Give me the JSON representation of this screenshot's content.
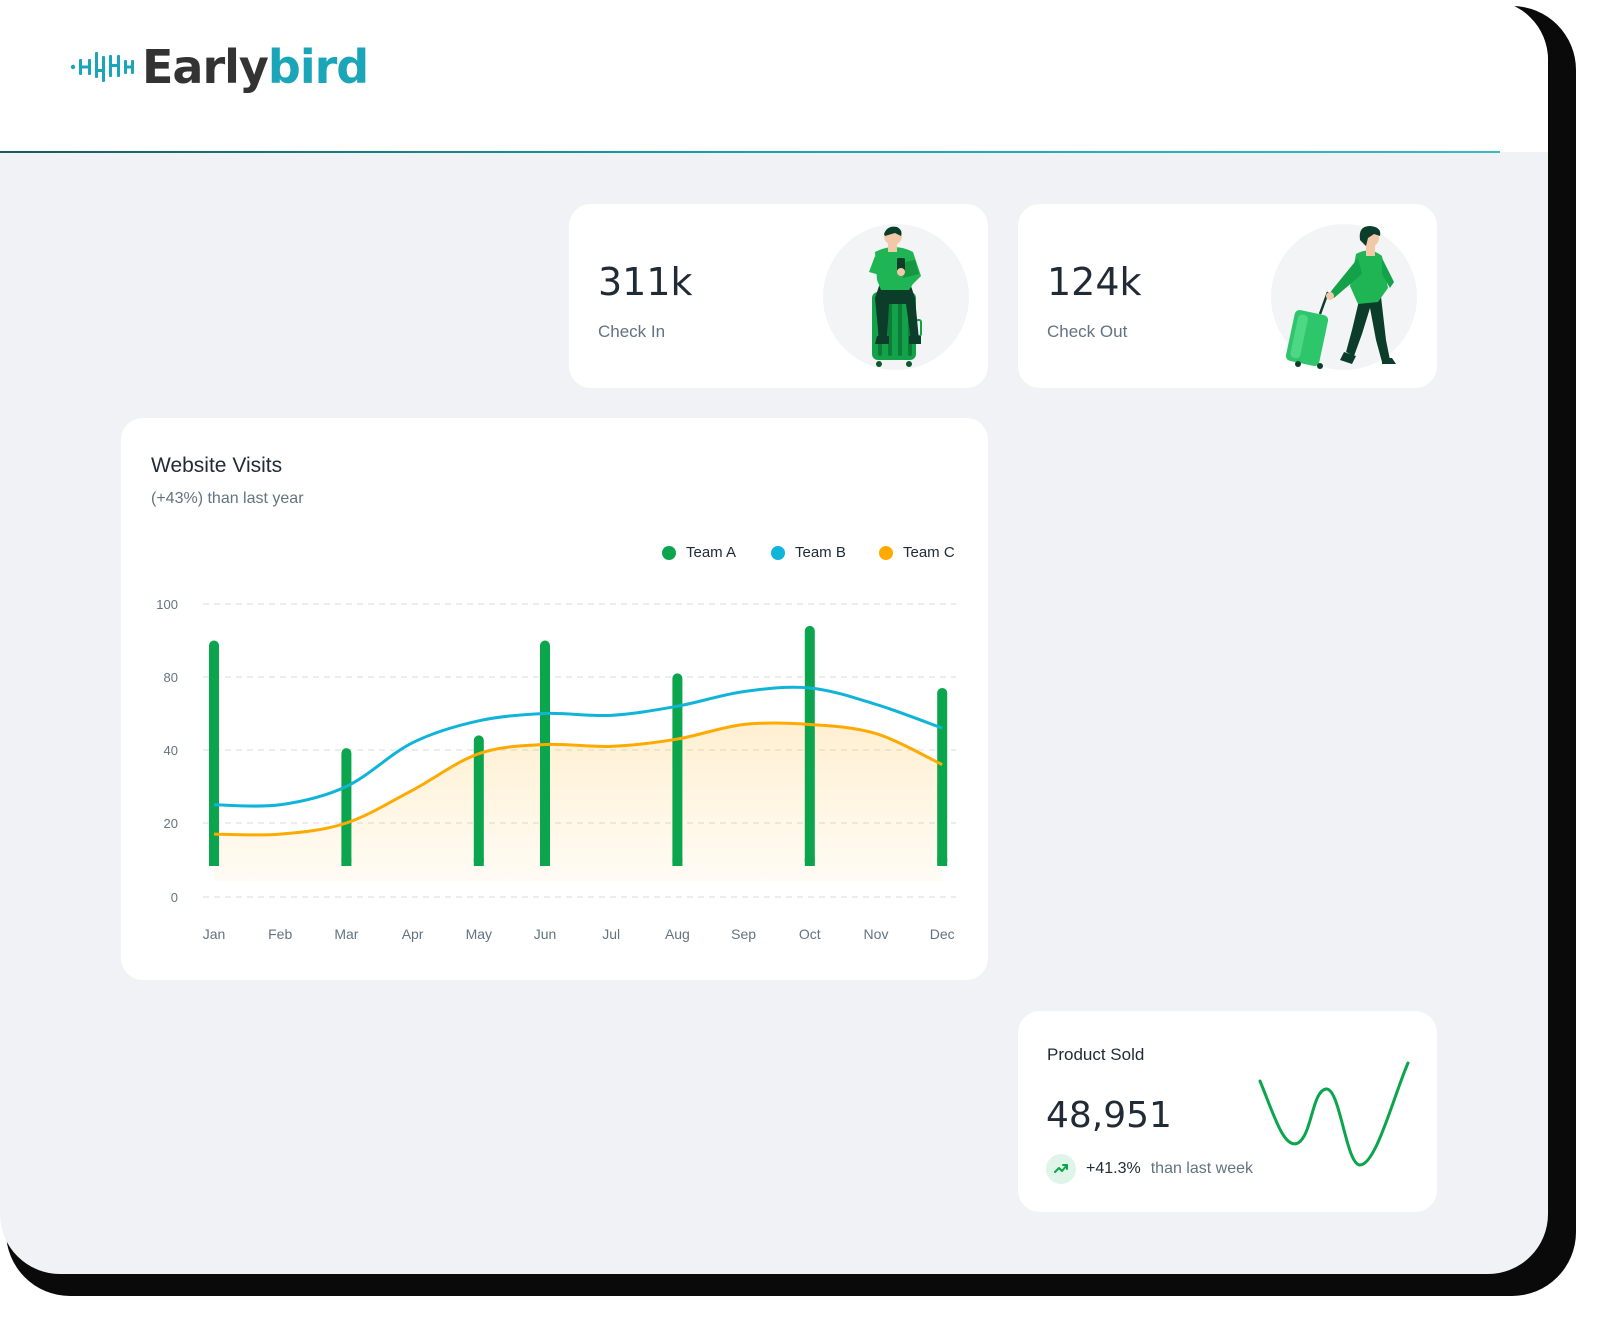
{
  "app": {
    "logo_text_dark": "Early",
    "logo_text_teal": "bird"
  },
  "colors": {
    "teamA": "#0aa54c",
    "teamB": "#10b4d8",
    "teamC": "#ffaa00",
    "teal": "#1ba5b8"
  },
  "stats": [
    {
      "value": "311k",
      "label": "Check In",
      "illustration": "man-sitting-on-suitcase-illustration"
    },
    {
      "value": "124k",
      "label": "Check Out",
      "illustration": "woman-walking-with-suitcase-illustration"
    }
  ],
  "website_visits": {
    "title": "Website Visits",
    "subtitle": "(+43%) than last year"
  },
  "chart_data": {
    "type": "bar",
    "categories": [
      "Jan",
      "Feb",
      "Mar",
      "Apr",
      "May",
      "Jun",
      "Jul",
      "Aug",
      "Sep",
      "Oct",
      "Nov",
      "Dec"
    ],
    "y_tick_labels": [
      "0",
      "20",
      "40",
      "80",
      "100"
    ],
    "grid": true,
    "legend_position": "top-right",
    "series": [
      {
        "name": "Team A",
        "type": "bar",
        "points": [
          [
            "Jan",
            90
          ],
          [
            "Mar",
            41
          ],
          [
            "May",
            48
          ],
          [
            "Jun",
            90
          ],
          [
            "Aug",
            81
          ],
          [
            "Oct",
            94
          ],
          [
            "Dec",
            74
          ]
        ]
      },
      {
        "name": "Team B",
        "type": "line",
        "values": [
          25,
          25,
          30,
          44,
          56,
          60,
          59,
          64,
          72,
          74,
          65,
          52
        ]
      },
      {
        "name": "Team C",
        "type": "area",
        "values": [
          17,
          17,
          20,
          29,
          39,
          43,
          42,
          46,
          54,
          54,
          49,
          36
        ]
      }
    ]
  },
  "product_sold": {
    "title": "Product Sold",
    "value": "48,951",
    "change": "+41.3%",
    "change_suffix": "than last week",
    "trend_icon": "trending-up-icon"
  }
}
